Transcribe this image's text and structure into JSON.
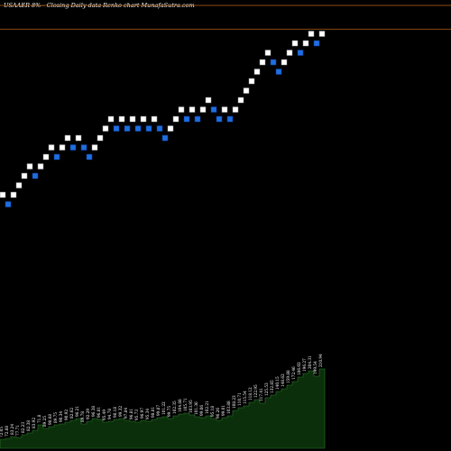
{
  "chart_data": {
    "type": "renko",
    "title": "USAAER 8%-- Closing Daily data Renko chart MunafaSutra.com",
    "colors": {
      "background": "#000000",
      "up_brick": "#ffffff",
      "down_brick": "#1e6fe0",
      "up_edge": "#888888",
      "down_edge": "#0a3d99",
      "reference_line": "#b5651d",
      "volume_fill": "#0b2f0b",
      "volume_edge": "#2d7a2d"
    },
    "grid": false,
    "reference_levels": [
      20,
      17.5
    ],
    "bricks": [
      {
        "i": 0,
        "level": 0,
        "dir": "up"
      },
      {
        "i": 1,
        "level": -1,
        "dir": "down"
      },
      {
        "i": 2,
        "level": 0,
        "dir": "up"
      },
      {
        "i": 3,
        "level": 1,
        "dir": "up"
      },
      {
        "i": 4,
        "level": 2,
        "dir": "up"
      },
      {
        "i": 5,
        "level": 3,
        "dir": "up"
      },
      {
        "i": 6,
        "level": 2,
        "dir": "down"
      },
      {
        "i": 7,
        "level": 3,
        "dir": "up"
      },
      {
        "i": 8,
        "level": 4,
        "dir": "up"
      },
      {
        "i": 9,
        "level": 5,
        "dir": "up"
      },
      {
        "i": 10,
        "level": 4,
        "dir": "down"
      },
      {
        "i": 11,
        "level": 5,
        "dir": "up"
      },
      {
        "i": 12,
        "level": 6,
        "dir": "up"
      },
      {
        "i": 13,
        "level": 5,
        "dir": "down"
      },
      {
        "i": 14,
        "level": 6,
        "dir": "up"
      },
      {
        "i": 15,
        "level": 5,
        "dir": "down"
      },
      {
        "i": 16,
        "level": 4,
        "dir": "down"
      },
      {
        "i": 17,
        "level": 5,
        "dir": "up"
      },
      {
        "i": 18,
        "level": 6,
        "dir": "up"
      },
      {
        "i": 19,
        "level": 7,
        "dir": "up"
      },
      {
        "i": 20,
        "level": 8,
        "dir": "up"
      },
      {
        "i": 21,
        "level": 7,
        "dir": "down"
      },
      {
        "i": 22,
        "level": 8,
        "dir": "up"
      },
      {
        "i": 23,
        "level": 7,
        "dir": "down"
      },
      {
        "i": 24,
        "level": 8,
        "dir": "up"
      },
      {
        "i": 25,
        "level": 7,
        "dir": "down"
      },
      {
        "i": 26,
        "level": 8,
        "dir": "up"
      },
      {
        "i": 27,
        "level": 7,
        "dir": "down"
      },
      {
        "i": 28,
        "level": 8,
        "dir": "up"
      },
      {
        "i": 29,
        "level": 7,
        "dir": "down"
      },
      {
        "i": 30,
        "level": 6,
        "dir": "down"
      },
      {
        "i": 31,
        "level": 7,
        "dir": "up"
      },
      {
        "i": 32,
        "level": 8,
        "dir": "up"
      },
      {
        "i": 33,
        "level": 9,
        "dir": "up"
      },
      {
        "i": 34,
        "level": 8,
        "dir": "down"
      },
      {
        "i": 35,
        "level": 9,
        "dir": "up"
      },
      {
        "i": 36,
        "level": 8,
        "dir": "down"
      },
      {
        "i": 37,
        "level": 9,
        "dir": "up"
      },
      {
        "i": 38,
        "level": 10,
        "dir": "up"
      },
      {
        "i": 39,
        "level": 9,
        "dir": "down"
      },
      {
        "i": 40,
        "level": 8,
        "dir": "down"
      },
      {
        "i": 41,
        "level": 9,
        "dir": "up"
      },
      {
        "i": 42,
        "level": 8,
        "dir": "down"
      },
      {
        "i": 43,
        "level": 9,
        "dir": "up"
      },
      {
        "i": 44,
        "level": 10,
        "dir": "up"
      },
      {
        "i": 45,
        "level": 11,
        "dir": "up"
      },
      {
        "i": 46,
        "level": 12,
        "dir": "up"
      },
      {
        "i": 47,
        "level": 13,
        "dir": "up"
      },
      {
        "i": 48,
        "level": 14,
        "dir": "up"
      },
      {
        "i": 49,
        "level": 15,
        "dir": "up"
      },
      {
        "i": 50,
        "level": 14,
        "dir": "down"
      },
      {
        "i": 51,
        "level": 13,
        "dir": "down"
      },
      {
        "i": 52,
        "level": 14,
        "dir": "up"
      },
      {
        "i": 53,
        "level": 15,
        "dir": "up"
      },
      {
        "i": 54,
        "level": 16,
        "dir": "up"
      },
      {
        "i": 55,
        "level": 15,
        "dir": "down"
      },
      {
        "i": 56,
        "level": 16,
        "dir": "up"
      },
      {
        "i": 57,
        "level": 17,
        "dir": "up"
      },
      {
        "i": 58,
        "level": 16,
        "dir": "down"
      },
      {
        "i": 59,
        "level": 17,
        "dir": "up"
      }
    ],
    "volume": [
      {
        "value": 10,
        "label": "72.05"
      },
      {
        "value": 11,
        "label": "72.88"
      },
      {
        "value": 13,
        "label": "83.24"
      },
      {
        "value": 12,
        "label": "77.71"
      },
      {
        "value": 15,
        "label": "82.23"
      },
      {
        "value": 17,
        "label": "82.38"
      },
      {
        "value": 20,
        "label": "83.92"
      },
      {
        "value": 26,
        "label": "71.8"
      },
      {
        "value": 22,
        "label": "89.25"
      },
      {
        "value": 24,
        "label": "90.68"
      },
      {
        "value": 26,
        "label": "89.75"
      },
      {
        "value": 27,
        "label": "90.34"
      },
      {
        "value": 29,
        "label": "90.92"
      },
      {
        "value": 31,
        "label": "82.62"
      },
      {
        "value": 33,
        "label": "96.21"
      },
      {
        "value": 27,
        "label": "89.78"
      },
      {
        "value": 30,
        "label": "92.29"
      },
      {
        "value": 33,
        "label": "96.38"
      },
      {
        "value": 32,
        "label": "96.81"
      },
      {
        "value": 29,
        "label": "95.49"
      },
      {
        "value": 30,
        "label": "94.78"
      },
      {
        "value": 32,
        "label": "98.18"
      },
      {
        "value": 33,
        "label": "99.32"
      },
      {
        "value": 31,
        "label": "97.84"
      },
      {
        "value": 30,
        "label": "96.81"
      },
      {
        "value": 29,
        "label": "95.73"
      },
      {
        "value": 31,
        "label": "96.97"
      },
      {
        "value": 30,
        "label": "95.34"
      },
      {
        "value": 32,
        "label": "98.81"
      },
      {
        "value": 34,
        "label": "99.87"
      },
      {
        "value": 35,
        "label": "101.22"
      },
      {
        "value": 33,
        "label": "99.75"
      },
      {
        "value": 36,
        "label": "102.35"
      },
      {
        "value": 38,
        "label": "104.88"
      },
      {
        "value": 39,
        "label": "105.71"
      },
      {
        "value": 37,
        "label": "103.95"
      },
      {
        "value": 35,
        "label": "101.36"
      },
      {
        "value": 34,
        "label": "99.06"
      },
      {
        "value": 36,
        "label": "102.21"
      },
      {
        "value": 33,
        "label": "95.18"
      },
      {
        "value": 31,
        "label": "96.26"
      },
      {
        "value": 34,
        "label": "99.01"
      },
      {
        "value": 36,
        "label": "103.88"
      },
      {
        "value": 42,
        "label": "108.23"
      },
      {
        "value": 45,
        "label": "110.71"
      },
      {
        "value": 47,
        "label": "115.54"
      },
      {
        "value": 51,
        "label": "118.12"
      },
      {
        "value": 54,
        "label": "122.95"
      },
      {
        "value": 50,
        "label": "117.41"
      },
      {
        "value": 56,
        "label": "125.53"
      },
      {
        "value": 59,
        "label": "132.85"
      },
      {
        "value": 63,
        "label": "140.15"
      },
      {
        "value": 66,
        "label": "148.62"
      },
      {
        "value": 70,
        "label": "159.88"
      },
      {
        "value": 74,
        "label": "172.46"
      },
      {
        "value": 79,
        "label": "186.02"
      },
      {
        "value": 83,
        "label": "196.27"
      },
      {
        "value": 86,
        "label": "204.31"
      },
      {
        "value": 80,
        "label": "199.54"
      },
      {
        "value": 88,
        "label": "210.94"
      }
    ]
  }
}
